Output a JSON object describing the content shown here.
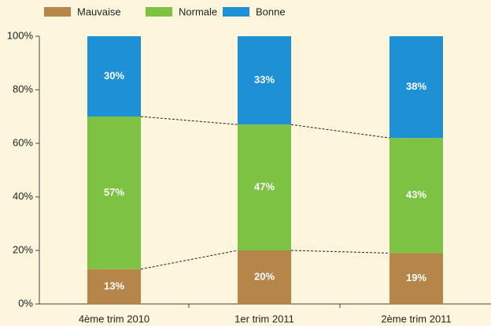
{
  "chart_data": {
    "type": "stacked_bar",
    "categories": [
      "4ème trim 2010",
      "1er trim 2011",
      "2ème trim 2011"
    ],
    "series": [
      {
        "name": "Mauvaise",
        "color": "#b5854a",
        "values": [
          13,
          20,
          19
        ],
        "value_labels": [
          "13%",
          "20%",
          "19%"
        ]
      },
      {
        "name": "Normale",
        "color": "#7dc242",
        "values": [
          57,
          47,
          43
        ],
        "value_labels": [
          "57%",
          "47%",
          "43%"
        ]
      },
      {
        "name": "Bonne",
        "color": "#1e90d6",
        "values": [
          30,
          33,
          38
        ],
        "value_labels": [
          "30%",
          "33%",
          "38%"
        ]
      }
    ],
    "ylim": [
      0,
      100
    ],
    "yticks": [
      {
        "value": 0,
        "label": "0%"
      },
      {
        "value": 20,
        "label": "20%"
      },
      {
        "value": 40,
        "label": "40%"
      },
      {
        "value": 60,
        "label": "60%"
      },
      {
        "value": 80,
        "label": "80%"
      },
      {
        "value": 100,
        "label": "100%"
      }
    ],
    "legend": "top",
    "grid": false
  }
}
